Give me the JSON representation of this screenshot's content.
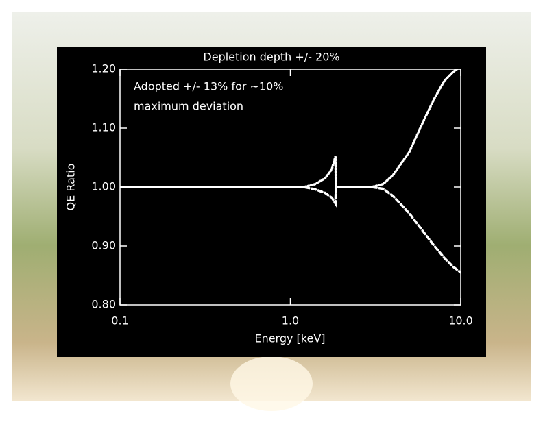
{
  "chart_data": {
    "type": "line",
    "title": "Depletion depth +/- 20%",
    "x_label": "Energy [keV]",
    "y_label": "QE Ratio",
    "annotations": [
      "Adopted +/- 13% for ~10%",
      "maximum deviation"
    ],
    "annotation_color": "#f08a5d",
    "x_scale": "log",
    "x": [
      0.1,
      0.5,
      1.0,
      1.2,
      1.4,
      1.6,
      1.75,
      1.84,
      1.85,
      2.0,
      2.5,
      3.0,
      3.5,
      4.0,
      5.0,
      6.0,
      7.0,
      8.0,
      9.0,
      10.0
    ],
    "series": [
      {
        "color": "#ffffff",
        "dash": "dotted",
        "values": [
          1.0,
          1.0,
          1.0,
          1.0,
          1.005,
          1.015,
          1.03,
          1.052,
          1.0,
          1.0,
          1.0,
          1.0,
          1.005,
          1.02,
          1.06,
          1.11,
          1.15,
          1.18,
          1.195,
          1.205
        ]
      },
      {
        "color": "#ffffff",
        "dash": "dashed",
        "values": [
          1.0,
          1.0,
          1.0,
          1.0,
          0.996,
          0.99,
          0.982,
          0.972,
          1.0,
          1.0,
          1.0,
          1.0,
          0.997,
          0.985,
          0.955,
          0.925,
          0.9,
          0.88,
          0.865,
          0.855
        ]
      }
    ],
    "xlim": [
      0.1,
      10.0
    ],
    "xticks": [
      0.1,
      {
        "value": 1.0,
        "label": "1.0"
      },
      {
        "value": 10.0,
        "label": "10.0"
      }
    ],
    "ylim": [
      0.8,
      1.2
    ],
    "yticks": [
      {
        "value": 0.8,
        "label": "0.80"
      },
      {
        "value": 0.9,
        "label": "0.90"
      },
      {
        "value": 1.0,
        "label": "1.00"
      },
      {
        "value": 1.1,
        "label": "1.10"
      },
      {
        "value": 1.2,
        "label": "1.20"
      }
    ]
  }
}
